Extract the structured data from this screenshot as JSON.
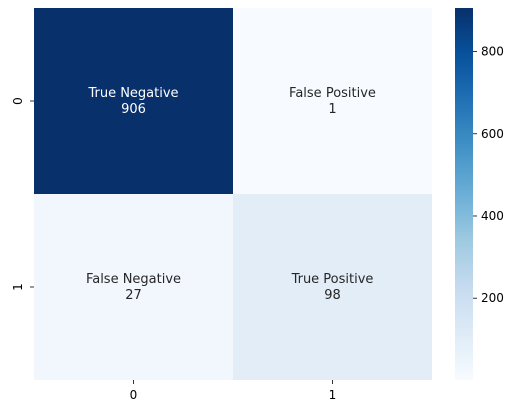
{
  "chart_data": {
    "type": "heatmap",
    "x_categories": [
      "0",
      "1"
    ],
    "y_categories": [
      "0",
      "1"
    ],
    "cells": [
      {
        "row": 0,
        "col": 0,
        "name": "True Negative",
        "value": 906
      },
      {
        "row": 0,
        "col": 1,
        "name": "False Positive",
        "value": 1
      },
      {
        "row": 1,
        "col": 0,
        "name": "False Negative",
        "value": 27
      },
      {
        "row": 1,
        "col": 1,
        "name": "True Positive",
        "value": 98
      }
    ],
    "colorbar": {
      "min": 1,
      "max": 906,
      "ticks": [
        "200",
        "400",
        "600",
        "800"
      ],
      "tick_values": [
        200,
        400,
        600,
        800
      ],
      "colormap": "Blues",
      "low_color": "#f7fbff",
      "high_color": "#08306b"
    },
    "title": "",
    "xlabel": "",
    "ylabel": ""
  }
}
